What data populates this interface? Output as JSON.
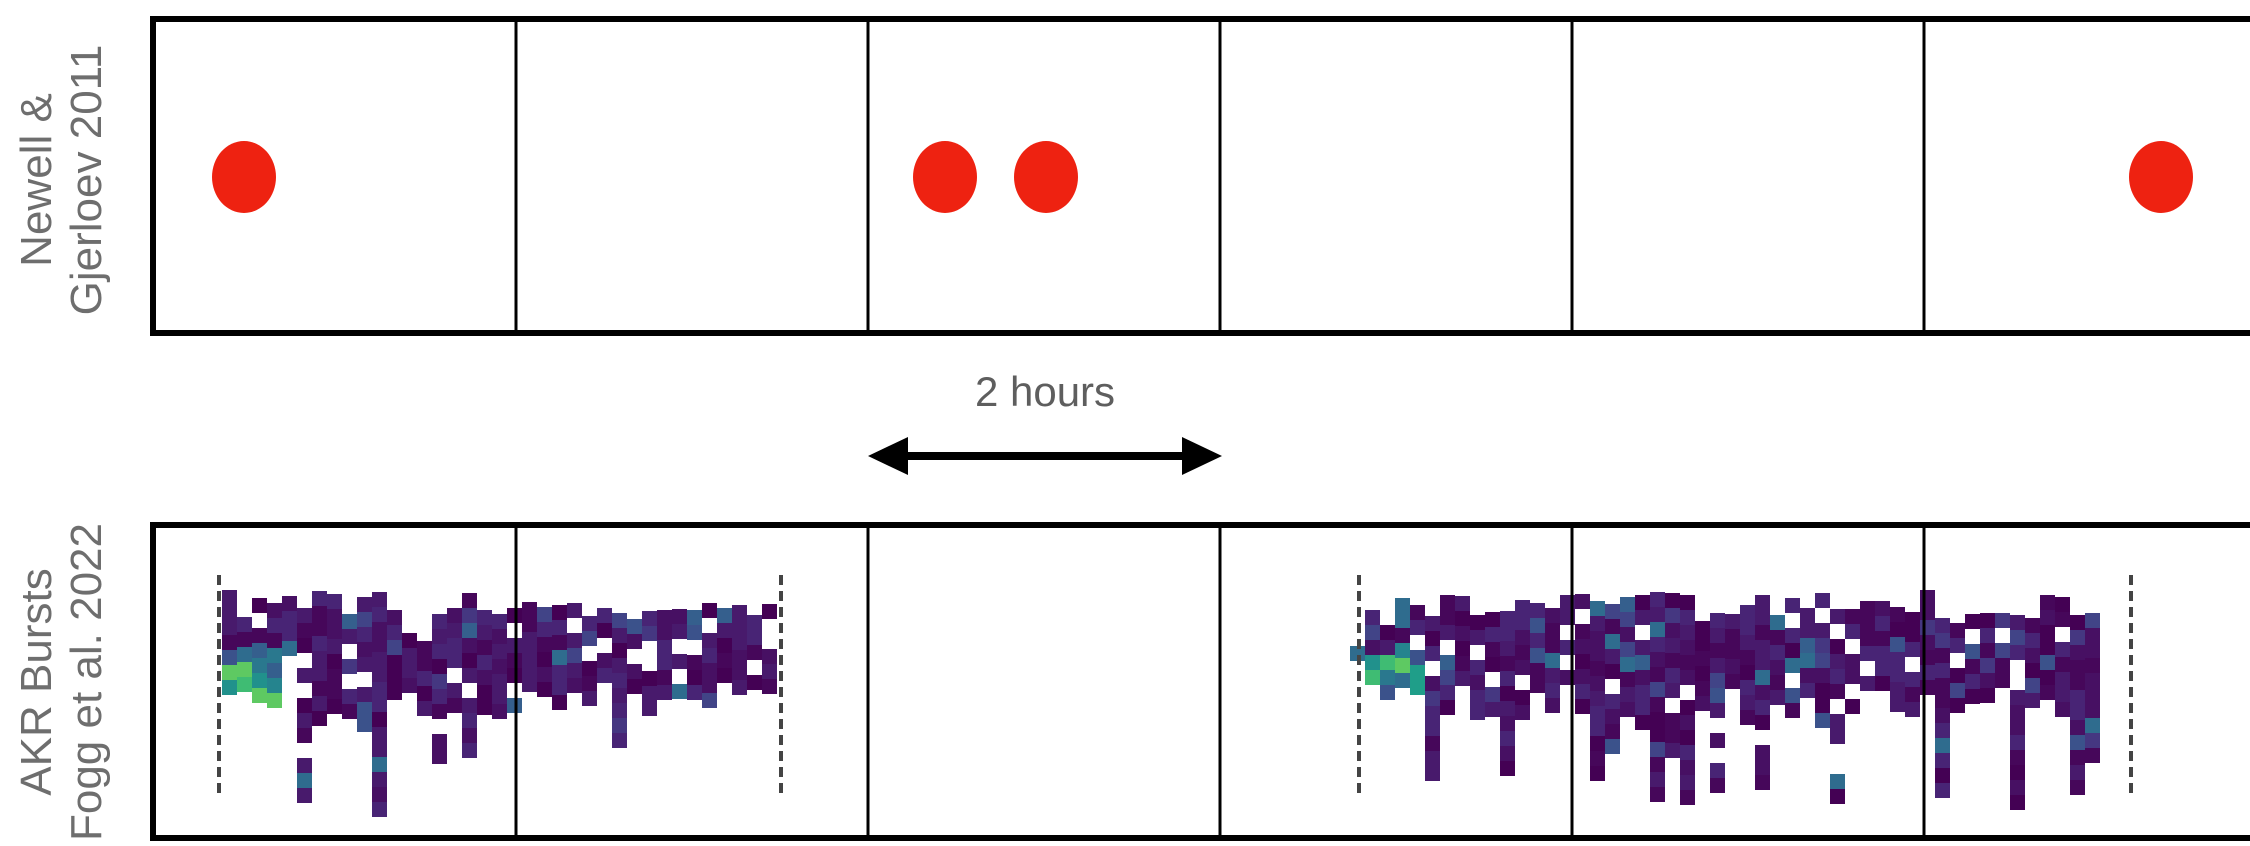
{
  "panels": [
    {
      "id": "top",
      "label_lines": [
        "Newell &",
        "Gjerloev 2011"
      ],
      "events": [
        1,
        3,
        4,
        10
      ]
    },
    {
      "id": "bottom",
      "label_lines": [
        "AKR Bursts",
        "Fogg et al. 2022"
      ]
    }
  ],
  "scale_bar": {
    "label": "2 hours"
  },
  "colors": {
    "frame": "#000000",
    "event_marker": "#ee2211",
    "label_text": "#6e6e6e",
    "heatmap_low": "#440154",
    "heatmap_mid": "#31688e",
    "heatmap_high": "#35b779"
  }
}
